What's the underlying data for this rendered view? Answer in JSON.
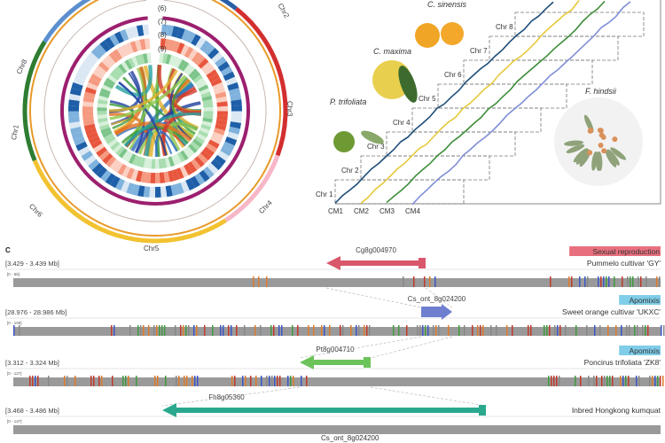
{
  "panel_a": {
    "chromosomes": [
      "Chr1",
      "Chr2",
      "Chr3",
      "Chr4",
      "Chr5",
      "Chr6",
      "Chr8"
    ],
    "track_labels": [
      "(6)",
      "(7)",
      "(8)",
      "(9)"
    ]
  },
  "panel_b": {
    "species": [
      "C. sinensis",
      "C. maxima",
      "P. trifoliata",
      "F. hindsii"
    ],
    "chromosomes": [
      "Chr 1",
      "Chr 2",
      "Chr 3",
      "Chr 4",
      "Chr 5",
      "Chr 6",
      "Chr 7",
      "Chr 8"
    ],
    "maps": [
      "CM1",
      "CM2",
      "CM3",
      "CM4"
    ],
    "line_colors": [
      "#1f4e79",
      "#e6c83a",
      "#3e8e3a",
      "#7f8fd6"
    ]
  },
  "panel_c": {
    "label": "C",
    "rows": [
      {
        "range": "[3.429 - 3.439 Mb]",
        "scale": "[0 - 66]",
        "gene": "Cg8g004970",
        "species": "Pummelo cultivar 'GY'",
        "badge": "Sexual reproduction",
        "badge_color": "#e8707e",
        "gene_color": "#d9576b",
        "direction": "left"
      },
      {
        "range": "[28.976 - 28.986 Mb]",
        "scale": "[0 - 100]",
        "gene": "Cs_ont_8g024200",
        "species": "Sweet orange cultivar 'UKXC'",
        "badge": "Apomixis",
        "badge_color": "#7fcde8",
        "gene_color": "#6f7fd0",
        "direction": "right"
      },
      {
        "range": "[3.312 - 3.324 Mb]",
        "scale": "[0 - 127]",
        "gene": "Pt8g004710",
        "species": "Poncirus trifoliata 'ZK8'",
        "badge": "Apomixis",
        "badge_color": "#7fcde8",
        "gene_color": "#6cc35a",
        "direction": "left"
      },
      {
        "range": "[3.468 - 3.486 Mb]",
        "scale": "[0 - 147]",
        "gene": "Fh8g05360",
        "species": "Inbred Hongkong kumquat",
        "badge": "",
        "badge_color": "",
        "gene_color": "#2aa88e",
        "direction": "left"
      }
    ],
    "bottom_gene": "Cs_ont_8g024200"
  }
}
